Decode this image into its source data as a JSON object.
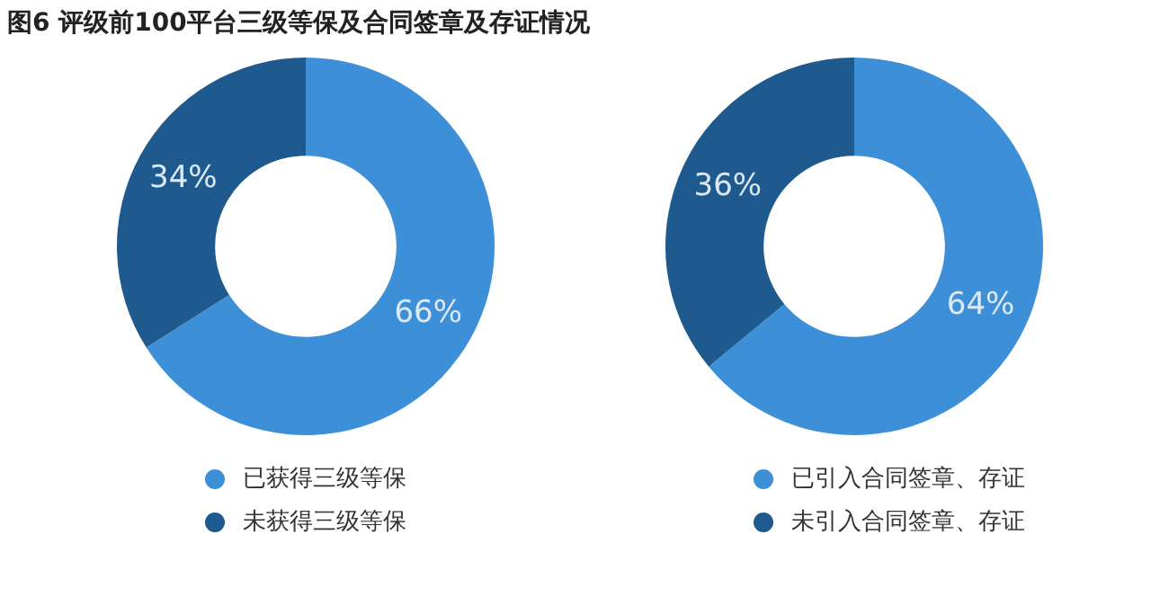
{
  "chart_data": [
    {
      "type": "donut",
      "title": "图6 评级前100平台三级等保及合同签章及存证情况",
      "categories": [
        "已获得三级等保",
        "未获得三级等保"
      ],
      "values": [
        66,
        34
      ],
      "colors": [
        "#3d8fd8",
        "#1f5a8e"
      ],
      "value_labels": [
        "66%",
        "34%"
      ],
      "legend": "bottom"
    },
    {
      "type": "donut",
      "categories": [
        "已引入合同签章、存证",
        "未引入合同签章、存证"
      ],
      "values": [
        64,
        36
      ],
      "colors": [
        "#3d8fd8",
        "#1f5a8e"
      ],
      "value_labels": [
        "64%",
        "36%"
      ],
      "legend": "bottom"
    }
  ]
}
